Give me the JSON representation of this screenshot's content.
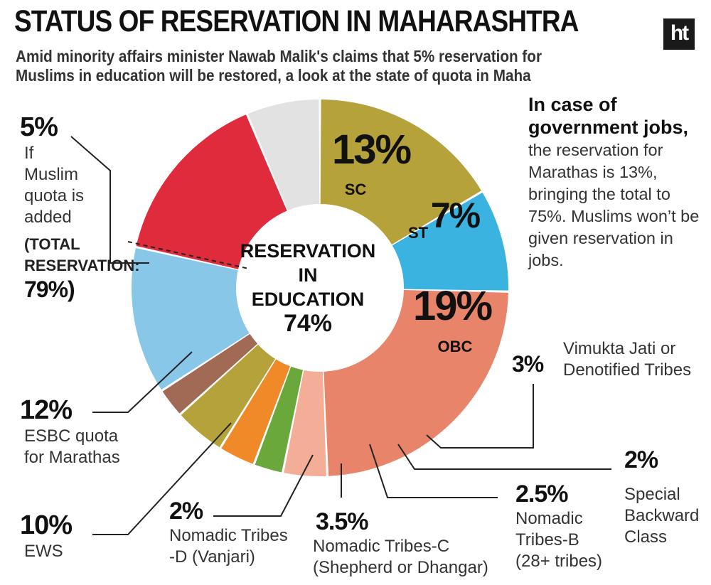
{
  "title": "STATUS OF RESERVATION IN MAHARASHTRA",
  "logo_text": "ht",
  "subtitle": "Amid minority affairs minister Nawab Malik's claims that 5% reservation for Muslims in education will be restored, a look at the state of quota in Maha",
  "side_note": {
    "bold": "In case of government jobs,",
    "text": "the reservation for Marathas is 13%, bringing the total to 75%. Muslims won’t be given reservation in jobs."
  },
  "center_label": {
    "line1": "RESERVATION",
    "line2": "IN",
    "line3": "EDUCATION",
    "line4": "74%"
  },
  "annotations": {
    "muslim": {
      "value": "5%",
      "lines": [
        "If",
        "Muslim",
        "quota is",
        "added"
      ],
      "total_l1": "(TOTAL",
      "total_l2": "RESERVATION:",
      "total_l3": "79%)"
    },
    "esbc": {
      "value": "12%",
      "l1": "ESBC quota",
      "l2": "for Marathas"
    },
    "ews": {
      "value": "10%",
      "l1": "EWS"
    },
    "ntd": {
      "value": "2%",
      "l1": "Nomadic Tribes",
      "l2": "-D (Vanjari)"
    },
    "ntc": {
      "value": "3.5%",
      "l1": "Nomadic Tribes-C",
      "l2": "(Shepherd or Dhangar)"
    },
    "ntb": {
      "value": "2.5%",
      "l1": "Nomadic",
      "l2": "Tribes-B",
      "l3": "(28+ tribes)"
    },
    "sbc": {
      "value": "2%",
      "l1": "Special",
      "l2": "Backward",
      "l3": "Class"
    },
    "vjnt": {
      "value": "3%",
      "l1": "Vimukta Jati or",
      "l2": "Denotified Tribes"
    }
  },
  "chart_data": {
    "type": "pie",
    "title": "STATUS OF RESERVATION IN MAHARASHTRA",
    "center_text": "RESERVATION IN EDUCATION 74%",
    "series": [
      {
        "label": "SC",
        "value": 13,
        "display": "13%",
        "color": "#b5a23a"
      },
      {
        "label": "ST",
        "value": 7,
        "display": "7%",
        "color": "#3bb3e0"
      },
      {
        "label": "OBC",
        "value": 19,
        "display": "19%",
        "color": "#e8846a"
      },
      {
        "label": "Vimukta Jati or Denotified Tribes",
        "value": 3,
        "display": "3%",
        "color": "#f4ae98"
      },
      {
        "label": "Special Backward Class",
        "value": 2,
        "display": "2%",
        "color": "#6aa83c"
      },
      {
        "label": "Nomadic Tribes-B (28+ tribes)",
        "value": 2.5,
        "display": "2.5%",
        "color": "#f08a28"
      },
      {
        "label": "Nomadic Tribes-C (Shepherd or Dhangar)",
        "value": 3.5,
        "display": "3.5%",
        "color": "#b5a23a"
      },
      {
        "label": "Nomadic Tribes -D (Vanjari)",
        "value": 2,
        "display": "2%",
        "color": "#a06a55"
      },
      {
        "label": "EWS",
        "value": 10,
        "display": "10%",
        "color": "#88c7e8"
      },
      {
        "label": "ESBC quota for Marathas",
        "value": 12,
        "display": "12%",
        "color": "#e02b3c"
      },
      {
        "label": "If Muslim quota is added",
        "value": 5,
        "display": "5%",
        "color": "#e2e2e2"
      }
    ]
  }
}
